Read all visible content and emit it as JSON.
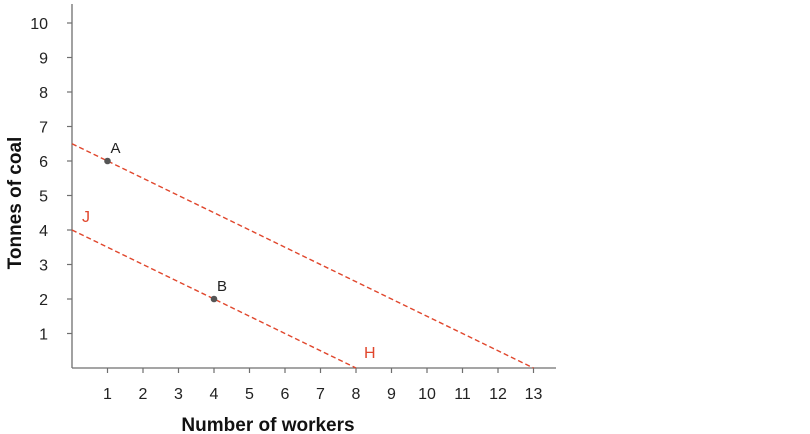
{
  "chart_data": {
    "type": "line",
    "title": "",
    "xlabel": "Number of workers",
    "ylabel": "Tonnes of coal",
    "xlim": [
      0,
      13.6
    ],
    "ylim": [
      0,
      10.6
    ],
    "x_ticks": [
      1,
      2,
      3,
      4,
      5,
      6,
      7,
      8,
      9,
      10,
      11,
      12,
      13
    ],
    "y_ticks": [
      1,
      2,
      3,
      4,
      5,
      6,
      7,
      8,
      9,
      10
    ],
    "grid": false,
    "series": [
      {
        "style": "dashed",
        "color": "#e0462c",
        "points": [
          [
            0,
            6.5
          ],
          [
            13,
            0
          ]
        ]
      },
      {
        "name": "J",
        "style": "dashed",
        "color": "#e0462c",
        "points": [
          [
            0,
            4
          ],
          [
            8,
            0
          ]
        ]
      }
    ],
    "line_end_labels": [
      {
        "text": "J",
        "x": 0,
        "y": 4
      },
      {
        "text": "H",
        "x": 8,
        "y": 0
      }
    ],
    "points": [
      {
        "label": "A",
        "x": 1,
        "y": 6
      },
      {
        "label": "B",
        "x": 4,
        "y": 2
      }
    ],
    "colors": {
      "line": "#e0462c",
      "point": "#555555",
      "axis": "#6f6f6f",
      "text": "#222222"
    }
  }
}
